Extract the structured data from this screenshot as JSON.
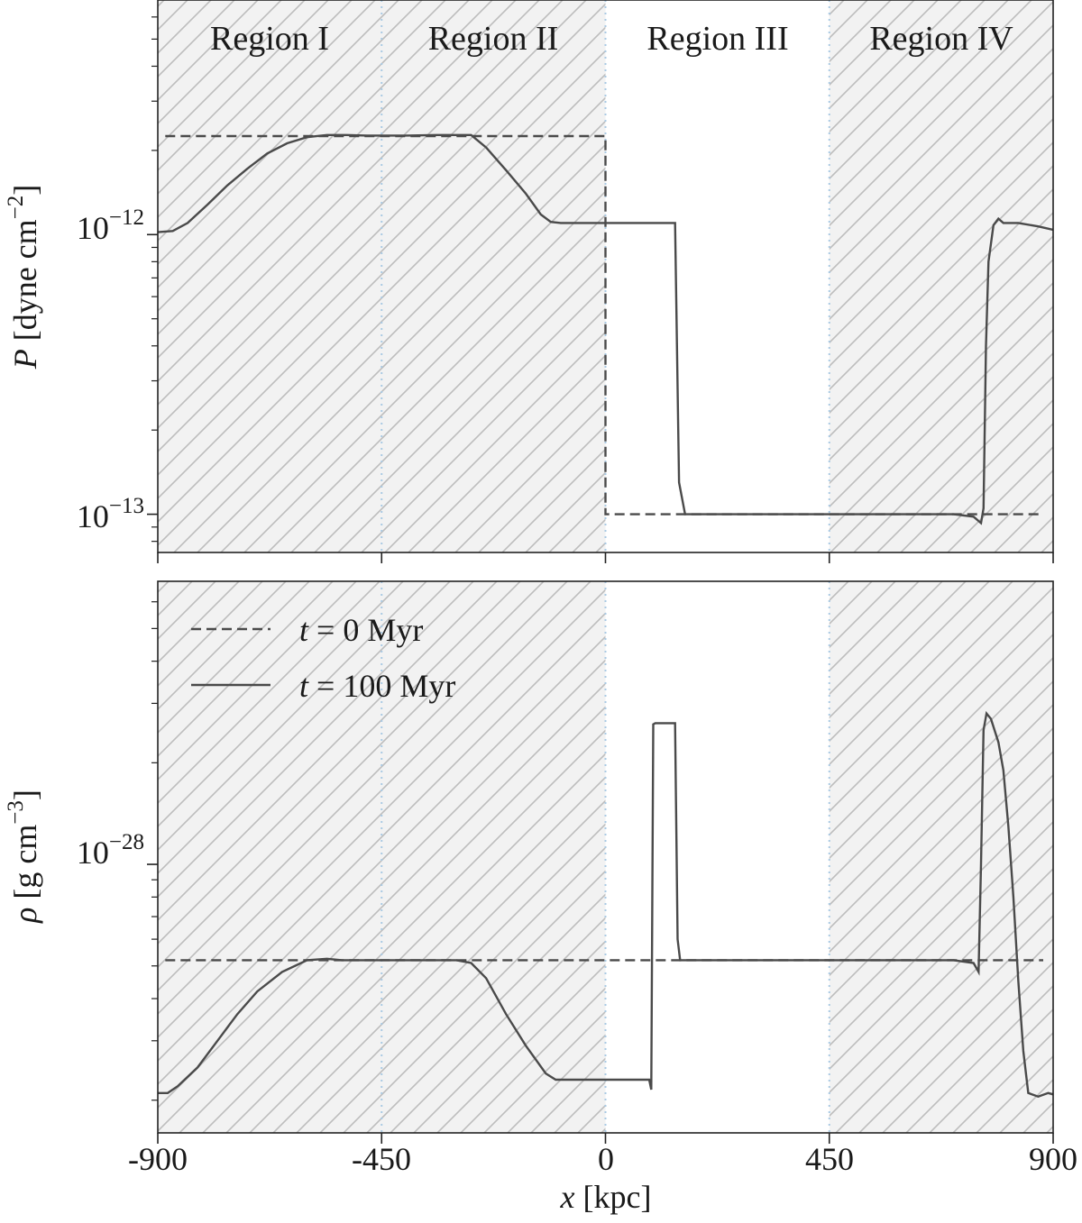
{
  "chart_data": [
    {
      "type": "line",
      "panel": "top",
      "ylabel_symbol": "P",
      "ylabel_units": " [dyne cm",
      "ylabel_exp": "−2",
      "ylabel_close": "]",
      "yscale": "log",
      "ylim": [
        7.3e-14,
        6.9e-12
      ],
      "xlim": [
        -900,
        900
      ],
      "yticks": [
        {
          "value": 1e-12,
          "base": "10",
          "exp": "−12"
        },
        {
          "value": 1e-13,
          "base": "10",
          "exp": "−13"
        }
      ],
      "region_labels": [
        "Region I",
        "Region II",
        "Region III",
        "Region IV"
      ],
      "region_bounds": [
        -900,
        -450,
        0,
        450,
        900
      ],
      "hatched_regions": [
        [
          -900,
          0
        ],
        [
          450,
          900
        ]
      ],
      "series": [
        {
          "name": "t = 0 Myr",
          "style": "dashed",
          "x": [
            -885,
            0,
            0,
            880
          ],
          "y": [
            2.25e-12,
            2.25e-12,
            1e-13,
            1e-13
          ]
        },
        {
          "name": "t = 100 Myr",
          "style": "solid",
          "x": [
            -900,
            -870,
            -840,
            -800,
            -760,
            -720,
            -680,
            -640,
            -600,
            -560,
            -520,
            -480,
            -450,
            -400,
            -340,
            -270,
            -240,
            -200,
            -160,
            -130,
            -110,
            -90,
            -50,
            0,
            50,
            100,
            140,
            148,
            160,
            300,
            450,
            600,
            700,
            740,
            755,
            760,
            765,
            770,
            780,
            790,
            800,
            830,
            870,
            900
          ],
          "y": [
            1.02e-12,
            1.03e-12,
            1.1e-12,
            1.28e-12,
            1.5e-12,
            1.72e-12,
            1.95e-12,
            2.12e-12,
            2.23e-12,
            2.27e-12,
            2.27e-12,
            2.26e-12,
            2.26e-12,
            2.26e-12,
            2.27e-12,
            2.27e-12,
            2.05e-12,
            1.7e-12,
            1.4e-12,
            1.18e-12,
            1.11e-12,
            1.1e-12,
            1.1e-12,
            1.1e-12,
            1.1e-12,
            1.1e-12,
            1.1e-12,
            1.3e-13,
            1e-13,
            1e-13,
            1e-13,
            1e-13,
            1e-13,
            9.8e-14,
            9.3e-14,
            1.05e-13,
            4e-13,
            8e-13,
            1.08e-12,
            1.14e-12,
            1.1e-12,
            1.1e-12,
            1.07e-12,
            1.04e-12
          ]
        }
      ]
    },
    {
      "type": "line",
      "panel": "bottom",
      "ylabel_symbol": "ρ",
      "ylabel_units": " [g cm",
      "ylabel_exp": "−3",
      "ylabel_close": "]",
      "yscale": "log",
      "ylim": [
        1.6e-29,
        6.9e-28
      ],
      "xlim": [
        -900,
        900
      ],
      "yticks": [
        {
          "value": 1e-28,
          "base": "10",
          "exp": "−28"
        }
      ],
      "xticks": [
        "-900",
        "-450",
        "0",
        "450",
        "900"
      ],
      "xlabel_symbol": "x",
      "xlabel_units": " [kpc]",
      "region_bounds": [
        -900,
        -450,
        0,
        450,
        900
      ],
      "hatched_regions": [
        [
          -900,
          0
        ],
        [
          450,
          900
        ]
      ],
      "legend": {
        "position": "upper-left",
        "entries": [
          {
            "symbol": "t",
            "text": " = 0 Myr",
            "style": "dashed"
          },
          {
            "symbol": "t",
            "text": " = 100 Myr",
            "style": "solid"
          }
        ]
      },
      "series": [
        {
          "name": "t = 0 Myr",
          "style": "dashed",
          "x": [
            -885,
            880
          ],
          "y": [
            5.2e-29,
            5.2e-29
          ]
        },
        {
          "name": "t = 100 Myr",
          "style": "solid",
          "x": [
            -900,
            -880,
            -860,
            -820,
            -780,
            -740,
            -700,
            -650,
            -600,
            -560,
            -530,
            -500,
            -450,
            -400,
            -350,
            -300,
            -270,
            -240,
            -200,
            -160,
            -120,
            -100,
            -50,
            0,
            50,
            88,
            92,
            96,
            100,
            140,
            145,
            150,
            160,
            300,
            450,
            600,
            700,
            740,
            750,
            755,
            760,
            766,
            775,
            790,
            800,
            810,
            820,
            830,
            840,
            850,
            870,
            890,
            900
          ],
          "y": [
            2.1e-29,
            2.1e-29,
            2.2e-29,
            2.5e-29,
            3e-29,
            3.6e-29,
            4.2e-29,
            4.8e-29,
            5.2e-29,
            5.25e-29,
            5.2e-29,
            5.2e-29,
            5.2e-29,
            5.2e-29,
            5.2e-29,
            5.2e-29,
            5.1e-29,
            4.6e-29,
            3.6e-29,
            2.9e-29,
            2.4e-29,
            2.3e-29,
            2.3e-29,
            2.3e-29,
            2.3e-29,
            2.3e-29,
            2.15e-29,
            2.6e-28,
            2.62e-28,
            2.62e-28,
            6e-29,
            5.2e-29,
            5.2e-29,
            5.2e-29,
            5.2e-29,
            5.2e-29,
            5.2e-29,
            5.1e-29,
            4.8e-29,
            1e-28,
            2.5e-28,
            2.8e-28,
            2.7e-28,
            2.3e-28,
            1.9e-28,
            1.3e-28,
            8e-29,
            4.5e-29,
            2.8e-29,
            2.1e-29,
            2.05e-29,
            2.1e-29,
            2.08e-29
          ]
        }
      ]
    }
  ]
}
